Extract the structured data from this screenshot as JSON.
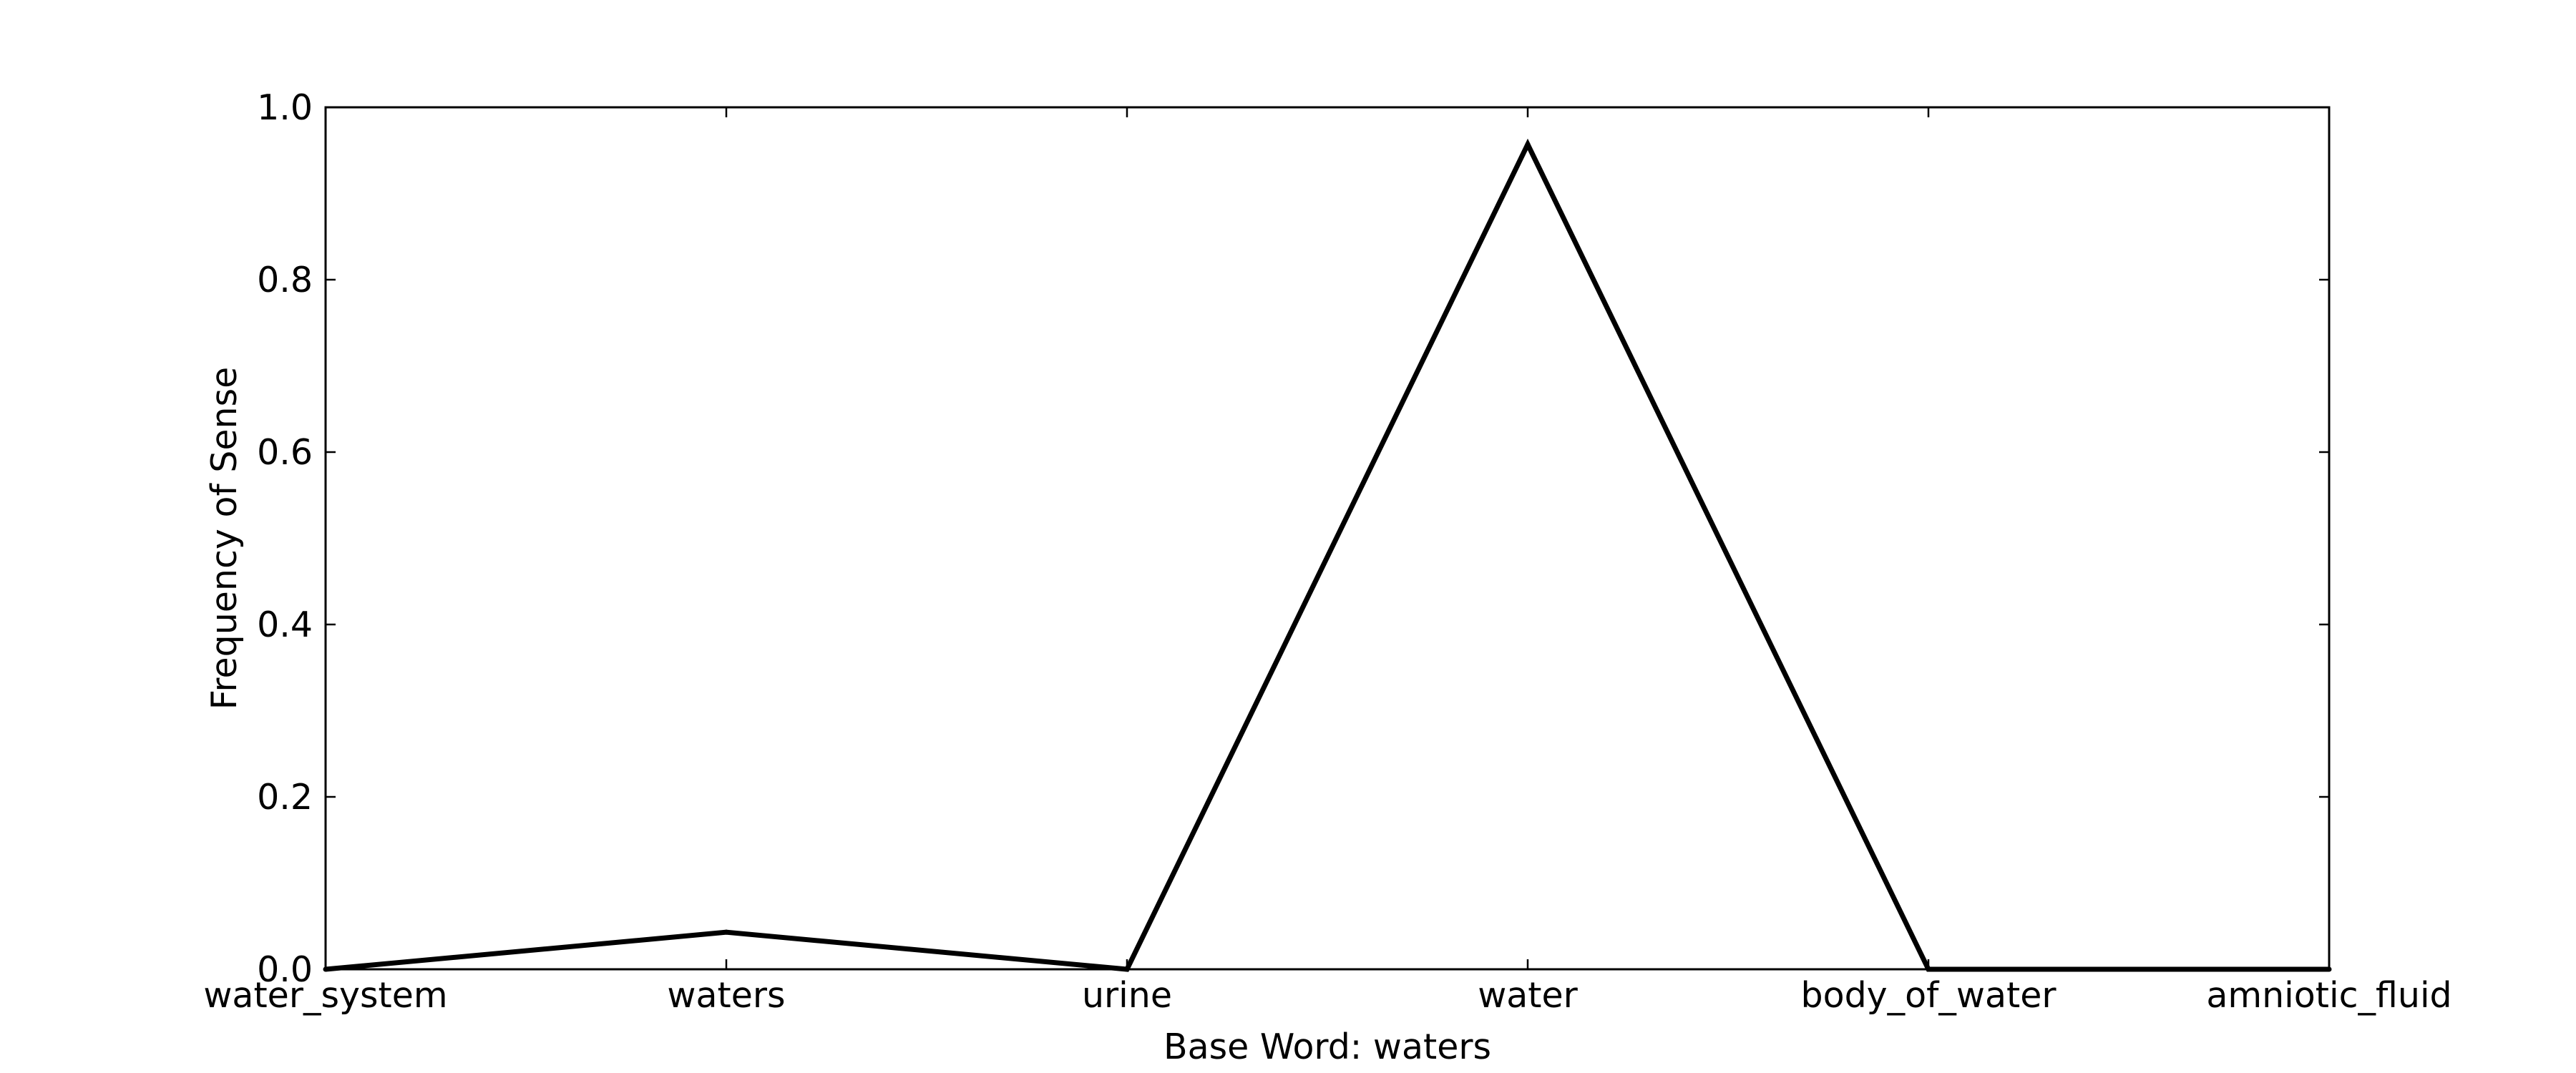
{
  "chart_data": {
    "type": "line",
    "title": "",
    "xlabel": "Base Word: waters",
    "ylabel": "Frequency of Sense",
    "categories": [
      "water_system",
      "waters",
      "urine",
      "water",
      "body_of_water",
      "amniotic_fluid"
    ],
    "series": [
      {
        "values": [
          0.0,
          0.043,
          0.0,
          0.957,
          0.0,
          0.0
        ],
        "color": "#000000"
      }
    ],
    "ylim": [
      0.0,
      1.0
    ],
    "yticks": [
      "0.0",
      "0.2",
      "0.4",
      "0.6",
      "0.8",
      "1.0"
    ],
    "grid": false
  }
}
